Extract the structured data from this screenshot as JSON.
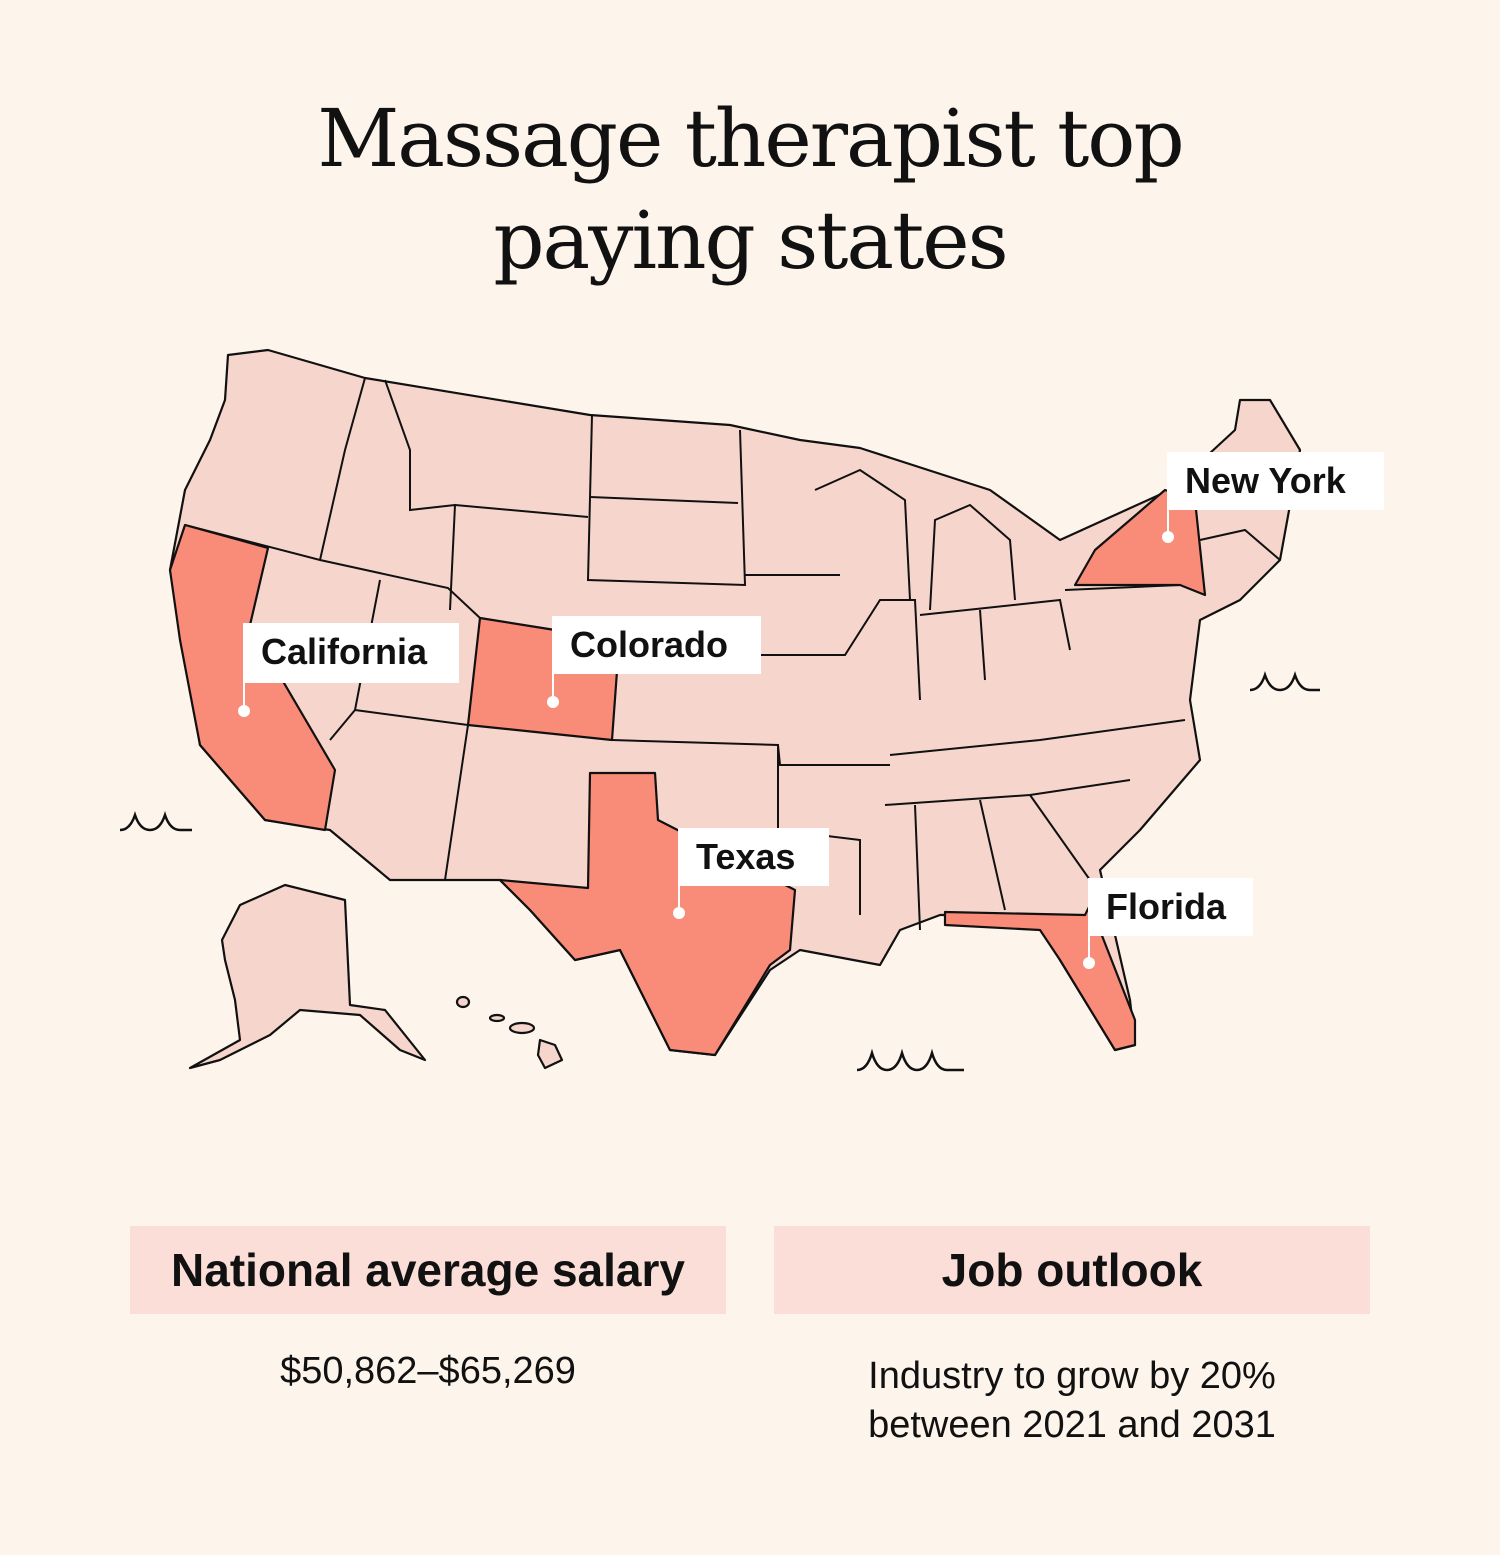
{
  "title": {
    "line1": "Massage therapist top",
    "line2": "paying states"
  },
  "colors": {
    "background": "#fdf4ec",
    "state_fill": "#f6d6cc",
    "highlight_fill": "#f98b79",
    "stat_box": "#fbded7"
  },
  "map": {
    "highlighted_states": [
      {
        "label": "California"
      },
      {
        "label": "Colorado"
      },
      {
        "label": "Texas"
      },
      {
        "label": "Florida"
      },
      {
        "label": "New York"
      }
    ]
  },
  "stats": [
    {
      "heading": "National average salary",
      "value": "$50,862–$65,269"
    },
    {
      "heading": "Job outlook",
      "value_line1": "Industry to grow by 20%",
      "value_line2": "between 2021 and 2031"
    }
  ]
}
